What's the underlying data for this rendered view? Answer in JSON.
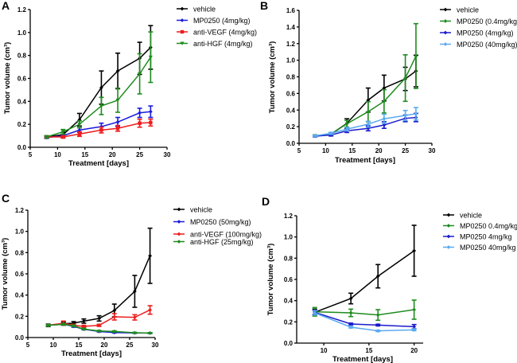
{
  "chart_data": [
    {
      "panel": "A",
      "type": "line",
      "title": "",
      "xlabel": "Treatment [days]",
      "ylabel": "Tumor volume (cm³)",
      "xlim": [
        5,
        30
      ],
      "ylim": [
        0,
        1.2
      ],
      "xticks": [
        5,
        10,
        15,
        20,
        25,
        30
      ],
      "yticks": [
        0.0,
        0.2,
        0.4,
        0.6,
        0.8,
        1.0,
        1.2
      ],
      "ytick_labels": [
        "0.0",
        "0.2",
        "0.4",
        "0.6",
        "0.8",
        "1.0",
        "1.2"
      ],
      "legend_position": "right",
      "grid": false,
      "series": [
        {
          "name": "vehicle",
          "color": "#000000",
          "marker": "diamond",
          "x": [
            8,
            11,
            14,
            18,
            21,
            25,
            27
          ],
          "y": [
            0.09,
            0.11,
            0.24,
            0.52,
            0.665,
            0.775,
            0.87
          ],
          "err": [
            0.01,
            0.02,
            0.055,
            0.145,
            0.155,
            0.14,
            0.19
          ]
        },
        {
          "name": "MP0250 (4mg/kg)",
          "color": "#1a1adc",
          "marker": "diamond",
          "x": [
            8,
            11,
            14,
            18,
            21,
            25,
            27
          ],
          "y": [
            0.085,
            0.1,
            0.15,
            0.18,
            0.22,
            0.3,
            0.31
          ],
          "err": [
            0.008,
            0.012,
            0.02,
            0.03,
            0.04,
            0.04,
            0.05
          ]
        },
        {
          "name": "anti-VEGF (4mg/kg)",
          "color": "#ee1c1c",
          "marker": "square",
          "x": [
            8,
            11,
            14,
            18,
            21,
            25,
            27
          ],
          "y": [
            0.09,
            0.09,
            0.115,
            0.15,
            0.165,
            0.21,
            0.215
          ],
          "err": [
            0.008,
            0.01,
            0.02,
            0.025,
            0.025,
            0.035,
            0.03
          ]
        },
        {
          "name": "anti-HGF (4mg/kg)",
          "color": "#1e8c1e",
          "marker": "triangle-down",
          "x": [
            8,
            11,
            14,
            18,
            21,
            25,
            27
          ],
          "y": [
            0.09,
            0.135,
            0.2,
            0.36,
            0.41,
            0.64,
            0.785
          ],
          "err": [
            0.01,
            0.02,
            0.03,
            0.075,
            0.105,
            0.175,
            0.22
          ]
        }
      ]
    },
    {
      "panel": "B",
      "type": "line",
      "title": "",
      "xlabel": "Treatment [days]",
      "ylabel": "Tumor volume (cm³)",
      "xlim": [
        5,
        30
      ],
      "ylim": [
        0,
        1.6
      ],
      "xticks": [
        5,
        10,
        15,
        20,
        25,
        30
      ],
      "yticks": [
        0.0,
        0.2,
        0.4,
        0.6,
        0.8,
        1.0,
        1.2,
        1.4,
        1.6
      ],
      "ytick_labels": [
        "0.0",
        "0.2",
        "0.4",
        "0.6",
        "0.8",
        "1.0",
        "1.2",
        "1.4",
        "1.6"
      ],
      "legend_position": "right",
      "grid": false,
      "series": [
        {
          "name": "vehicle",
          "color": "#000000",
          "marker": "diamond",
          "x": [
            8,
            11,
            14,
            18,
            21,
            25,
            27
          ],
          "y": [
            0.09,
            0.11,
            0.24,
            0.52,
            0.665,
            0.775,
            0.87
          ],
          "err": [
            0.01,
            0.02,
            0.055,
            0.145,
            0.155,
            0.14,
            0.19
          ]
        },
        {
          "name": "MP0250 (0.4mg/kg)",
          "color": "#1e8c1e",
          "marker": "diamond",
          "x": [
            8,
            11,
            14,
            18,
            21,
            25,
            27
          ],
          "y": [
            0.09,
            0.11,
            0.235,
            0.38,
            0.505,
            0.785,
            1.05
          ],
          "err": [
            0.01,
            0.02,
            0.04,
            0.12,
            0.14,
            0.28,
            0.39
          ]
        },
        {
          "name": "MP0250 (4mg/kg)",
          "color": "#1a1acc",
          "marker": "diamond",
          "x": [
            8,
            11,
            14,
            18,
            21,
            25,
            27
          ],
          "y": [
            0.085,
            0.1,
            0.15,
            0.18,
            0.22,
            0.3,
            0.31
          ],
          "err": [
            0.008,
            0.012,
            0.02,
            0.03,
            0.04,
            0.04,
            0.05
          ]
        },
        {
          "name": "MP0250 (40mg/kg)",
          "color": "#5aaaf0",
          "marker": "diamond",
          "x": [
            8,
            11,
            14,
            18,
            21,
            25,
            27
          ],
          "y": [
            0.09,
            0.12,
            0.17,
            0.23,
            0.295,
            0.335,
            0.355
          ],
          "err": [
            0.008,
            0.012,
            0.02,
            0.035,
            0.055,
            0.06,
            0.075
          ]
        }
      ]
    },
    {
      "panel": "C",
      "type": "line",
      "title": "",
      "xlabel": "Treatment [days]",
      "ylabel": "Tumor volume (cm³)",
      "xlim": [
        5,
        30
      ],
      "ylim": [
        0,
        1.2
      ],
      "xticks": [
        5,
        10,
        15,
        20,
        25,
        30
      ],
      "yticks": [
        0.0,
        0.2,
        0.4,
        0.6,
        0.8,
        1.0,
        1.2
      ],
      "ytick_labels": [
        "0.0",
        "0.2",
        "0.4",
        "0.6",
        "0.8",
        "1.0",
        "1.2"
      ],
      "legend_position": "right",
      "grid": false,
      "series": [
        {
          "name": "vehicle",
          "color": "#000000",
          "marker": "diamond",
          "x": [
            9,
            12,
            14,
            16,
            19,
            22,
            26,
            29
          ],
          "y": [
            0.115,
            0.13,
            0.135,
            0.155,
            0.18,
            0.255,
            0.435,
            0.77
          ],
          "err": [
            0.012,
            0.015,
            0.015,
            0.02,
            0.025,
            0.06,
            0.15,
            0.26
          ]
        },
        {
          "name": "MP0250 (50mg/kg)",
          "color": "#1a1adc",
          "marker": "diamond",
          "x": [
            9,
            12,
            14,
            16,
            19,
            22,
            26,
            29
          ],
          "y": [
            0.115,
            0.125,
            0.105,
            0.078,
            0.057,
            0.047,
            0.043,
            0.042
          ],
          "err": [
            0.008,
            0.008,
            0.008,
            0.006,
            0.005,
            0.004,
            0.004,
            0.004
          ]
        },
        {
          "name": "anti-VEGF (100mg/kg)",
          "color": "#ee1c1c",
          "marker": "diamond",
          "x": [
            9,
            12,
            14,
            16,
            19,
            22,
            26,
            29
          ],
          "y": [
            0.115,
            0.135,
            0.115,
            0.105,
            0.115,
            0.195,
            0.19,
            0.26
          ],
          "err": [
            0.008,
            0.02,
            0.01,
            0.01,
            0.01,
            0.03,
            0.025,
            0.04
          ]
        },
        {
          "name": "anti-HGF (25mg/kg)",
          "color": "#1e8c1e",
          "marker": "diamond",
          "x": [
            9,
            12,
            14,
            16,
            19,
            22,
            26,
            29
          ],
          "y": [
            0.115,
            0.125,
            0.11,
            0.08,
            0.062,
            0.057,
            0.045,
            0.042
          ],
          "err": [
            0.008,
            0.008,
            0.008,
            0.006,
            0.005,
            0.006,
            0.004,
            0.004
          ]
        }
      ]
    },
    {
      "panel": "D",
      "type": "line",
      "title": "",
      "xlabel": "Treatment [days]",
      "ylabel": "Tumor volume (cm³)",
      "xlim": [
        7,
        21
      ],
      "ylim": [
        0,
        1.2
      ],
      "xticks": [
        10,
        15,
        20
      ],
      "yticks": [
        0.0,
        0.2,
        0.4,
        0.6,
        0.8,
        1.0,
        1.2
      ],
      "ytick_labels": [
        "0.0",
        "0.2",
        "0.4",
        "0.6",
        "0.8",
        "1.0",
        "1.2"
      ],
      "legend_position": "right",
      "grid": false,
      "series": [
        {
          "name": "vehicle",
          "color": "#000000",
          "marker": "diamond",
          "x": [
            9,
            13,
            16,
            20
          ],
          "y": [
            0.29,
            0.42,
            0.63,
            0.87
          ],
          "err": [
            0.03,
            0.05,
            0.11,
            0.24
          ]
        },
        {
          "name": "MP0250 0.4mg/kg",
          "color": "#1e8c1e",
          "marker": "diamond",
          "x": [
            9,
            13,
            16,
            20
          ],
          "y": [
            0.295,
            0.285,
            0.265,
            0.315
          ],
          "err": [
            0.04,
            0.035,
            0.05,
            0.09
          ]
        },
        {
          "name": "MP0250 4mg/kg",
          "color": "#1a1acc",
          "marker": "diamond",
          "x": [
            9,
            13,
            16,
            20
          ],
          "y": [
            0.29,
            0.18,
            0.17,
            0.155
          ],
          "err": [
            0.02,
            0.008,
            0.008,
            0.02
          ]
        },
        {
          "name": "MP0250 40mg/kg",
          "color": "#5aaaf0",
          "marker": "diamond",
          "x": [
            9,
            13,
            16,
            20
          ],
          "y": [
            0.285,
            0.15,
            0.115,
            0.125
          ],
          "err": [
            0.02,
            0.008,
            0.006,
            0.008
          ]
        }
      ]
    }
  ],
  "panels": [
    {
      "label": "A"
    },
    {
      "label": "B"
    },
    {
      "label": "C"
    },
    {
      "label": "D"
    }
  ]
}
